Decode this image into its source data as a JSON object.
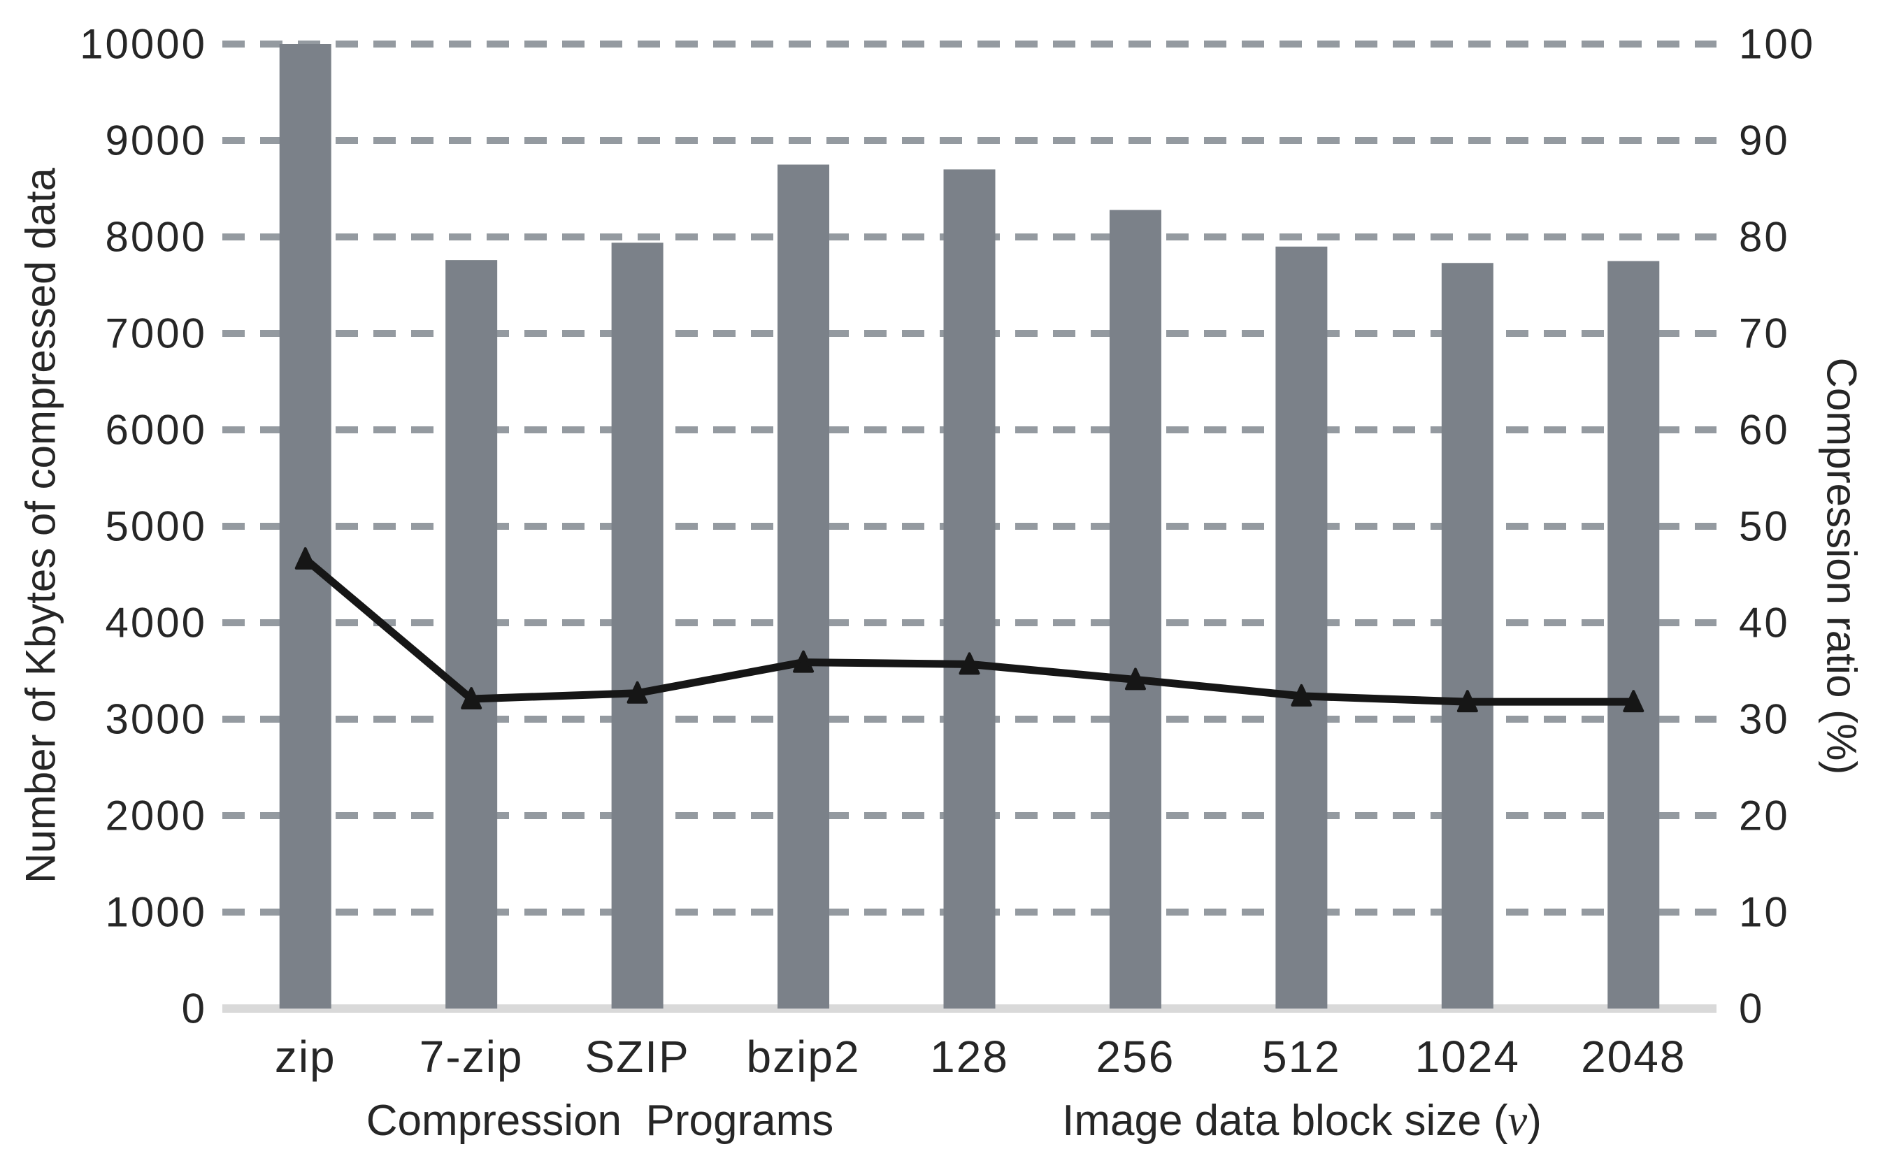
{
  "chart_data": {
    "type": "bar",
    "subtype": "bar-line combo, dual axis",
    "categories": [
      "zip",
      "7-zip",
      "SZIP",
      "bzip2",
      "128",
      "256",
      "512",
      "1024",
      "2048"
    ],
    "series": [
      {
        "name": "Number of Kbytes of compressed data",
        "type": "bar",
        "axis": "left",
        "values": [
          10000,
          7760,
          7940,
          8750,
          8700,
          8280,
          7900,
          7730,
          7750
        ]
      },
      {
        "name": "Compression ratio (%)",
        "type": "line",
        "axis": "right",
        "marker": "triangle",
        "values": [
          46.6,
          32.1,
          32.7,
          35.9,
          35.7,
          34.1,
          32.4,
          31.8,
          31.8
        ]
      }
    ],
    "left_axis": {
      "label": "Number of Kbytes of compressed data",
      "min": 0,
      "max": 10000,
      "tick_step": 1000,
      "ticks": [
        "10000",
        "9000",
        "8000",
        "7000",
        "6000",
        "5000",
        "4000",
        "3000",
        "2000",
        "1000",
        "0"
      ]
    },
    "right_axis": {
      "label": "Compression ratio (%)",
      "min": 0,
      "max": 100,
      "tick_step": 10,
      "ticks": [
        "100",
        "90",
        "80",
        "70",
        "60",
        "50",
        "40",
        "30",
        "20",
        "10",
        "0"
      ]
    },
    "x_axis": {
      "group_label_programs": "Compression  Programs",
      "group_label_blocksize_prefix": "Image data block size (",
      "group_label_blocksize_italic": "v",
      "group_label_blocksize_suffix": ")"
    },
    "grid": "dashed horizontal gridlines, solid light baseline at 0",
    "legend": "none",
    "colors": {
      "bar": "#7b8189",
      "line": "#161616",
      "grid": "#949aa0",
      "baseline": "#d9d9d9",
      "text": "#262626"
    }
  }
}
